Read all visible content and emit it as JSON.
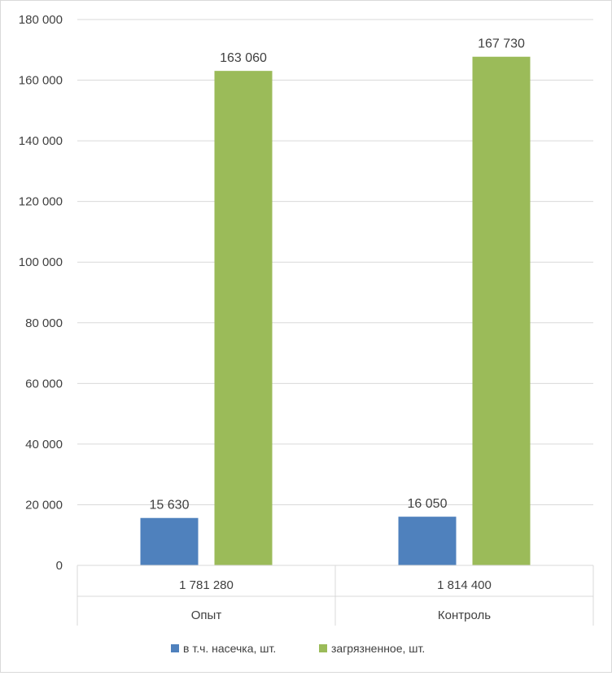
{
  "chart_data": {
    "type": "bar",
    "title": "",
    "xlabel": "",
    "ylabel": "",
    "ylim": [
      0,
      180000
    ],
    "yticks": [
      0,
      20000,
      40000,
      60000,
      80000,
      100000,
      120000,
      140000,
      160000,
      180000
    ],
    "ytick_labels": [
      "0",
      "20 000",
      "40 000",
      "60 000",
      "80 000",
      "100 000",
      "120 000",
      "140 000",
      "160 000",
      "180 000"
    ],
    "grid": true,
    "legend_position": "bottom",
    "categories": [
      {
        "label": "Опыт",
        "sublabel": "1 781 280"
      },
      {
        "label": "Контроль",
        "sublabel": "1 814 400"
      }
    ],
    "series": [
      {
        "name": "в т.ч. насечка, шт.",
        "color": "#4f81bd",
        "values": [
          15630,
          16050
        ],
        "labels": [
          "15 630",
          "16 050"
        ]
      },
      {
        "name": "загрязненное, шт.",
        "color": "#9bbb59",
        "values": [
          163060,
          167730
        ],
        "labels": [
          "163 060",
          "167 730"
        ]
      }
    ]
  }
}
